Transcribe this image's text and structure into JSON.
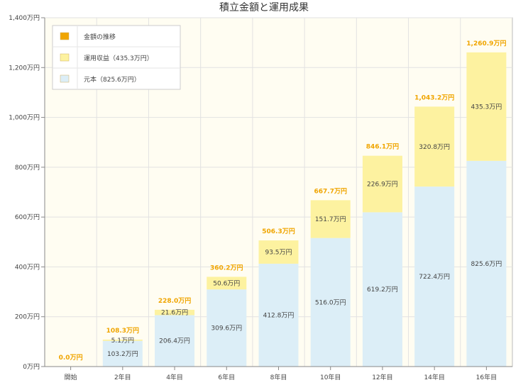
{
  "chart_data": {
    "type": "bar",
    "stacked": true,
    "title": "積立金額と運用成果",
    "categories": [
      "開始",
      "2年目",
      "4年目",
      "6年目",
      "8年目",
      "10年目",
      "12年目",
      "14年目",
      "16年目"
    ],
    "series": [
      {
        "name": "元本（825.6万円）",
        "color": "#dceef7",
        "values": [
          0,
          103.2,
          206.4,
          309.6,
          412.8,
          516.0,
          619.2,
          722.4,
          825.6
        ],
        "labels": [
          "",
          "103.2万円",
          "206.4万円",
          "309.6万円",
          "412.8万円",
          "516.0万円",
          "619.2万円",
          "722.4万円",
          "825.6万円"
        ]
      },
      {
        "name": "運用収益（435.3万円）",
        "color": "#fdf2a0",
        "values": [
          0,
          5.1,
          21.6,
          50.6,
          93.5,
          151.7,
          226.9,
          320.8,
          435.3
        ],
        "labels": [
          "",
          "5.1万円",
          "21.6万円",
          "50.6万円",
          "93.5万円",
          "151.7万円",
          "226.9万円",
          "320.8万円",
          "435.3万円"
        ]
      }
    ],
    "totals": {
      "name": "金額の推移",
      "color": "#f0a500",
      "values": [
        0.0,
        108.3,
        228.0,
        360.2,
        506.3,
        667.7,
        846.1,
        1043.2,
        1260.9
      ],
      "labels": [
        "0.0万円",
        "108.3万円",
        "228.0万円",
        "360.2万円",
        "506.3万円",
        "667.7万円",
        "846.1万円",
        "1,043.2万円",
        "1,260.9万円"
      ]
    },
    "ylim": [
      0,
      1400
    ],
    "yticks": [
      {
        "value": 0,
        "label": "0万円"
      },
      {
        "value": 200,
        "label": "200万円"
      },
      {
        "value": 400,
        "label": "400万円"
      },
      {
        "value": 600,
        "label": "600万円"
      },
      {
        "value": 800,
        "label": "800万円"
      },
      {
        "value": 1000,
        "label": "1,000万円"
      },
      {
        "value": 1200,
        "label": "1,200万円"
      },
      {
        "value": 1400,
        "label": "1,400万円"
      }
    ],
    "grid": true,
    "legend_position": "top-left",
    "legend": [
      "金額の推移",
      "運用収益（435.3万円）",
      "元本（825.6万円）"
    ]
  }
}
